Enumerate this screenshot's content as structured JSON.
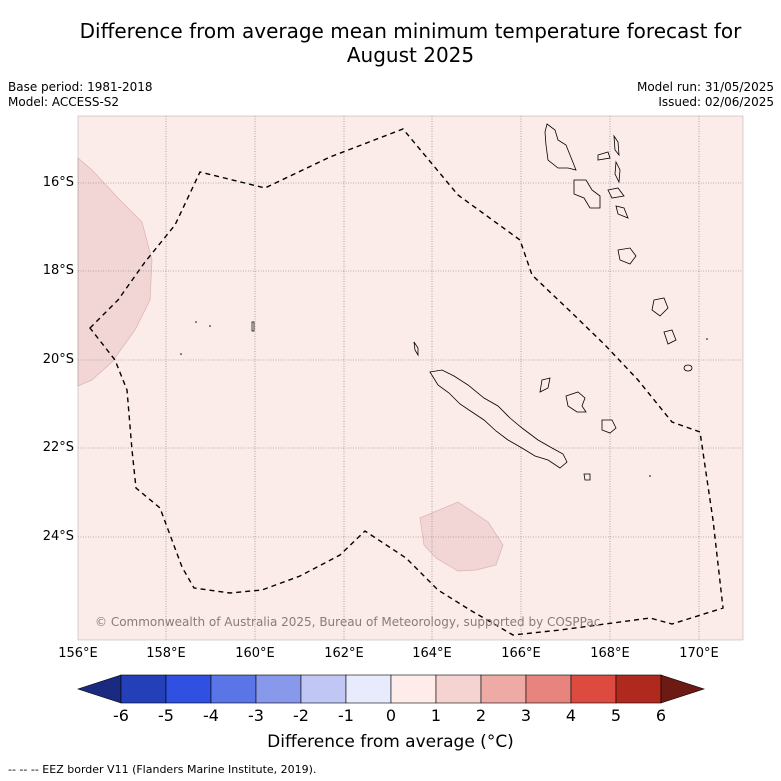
{
  "title_line1": "Difference from average mean minimum temperature forecast for",
  "title_line2": "August 2025",
  "meta": {
    "base_period": "Base period: 1981-2018",
    "model": "Model: ACCESS-S2",
    "model_run": "Model run: 31/05/2025",
    "issued": "Issued: 02/06/2025"
  },
  "map": {
    "lat_labels": [
      "16°S",
      "18°S",
      "20°S",
      "22°S",
      "24°S"
    ],
    "lon_labels": [
      "156°E",
      "158°E",
      "160°E",
      "162°E",
      "164°E",
      "166°E",
      "168°E",
      "170°E"
    ],
    "background_color": "#fbebe9",
    "anomaly_patch_color": "#f2d6d5",
    "copyright": "© Commonwealth of Australia 2025, Bureau of Meteorology, supported by COSPPac"
  },
  "colorbar": {
    "ticks": [
      "-6",
      "-5",
      "-4",
      "-3",
      "-2",
      "-1",
      "0",
      "1",
      "2",
      "3",
      "4",
      "5",
      "6"
    ],
    "colors": [
      "#1a2a80",
      "#2340b8",
      "#2f50e0",
      "#5a75e6",
      "#8898ea",
      "#c0c7f5",
      "#e8ebfb",
      "#fdecea",
      "#f5d3d1",
      "#eeaaa5",
      "#e6847d",
      "#dc4a40",
      "#b0291f",
      "#6e1a14"
    ],
    "label": "Difference from average (",
    "label_unit": "°C)"
  },
  "footnote": "--  --  -- EEZ border V11 (Flanders Marine Institute, 2019)."
}
